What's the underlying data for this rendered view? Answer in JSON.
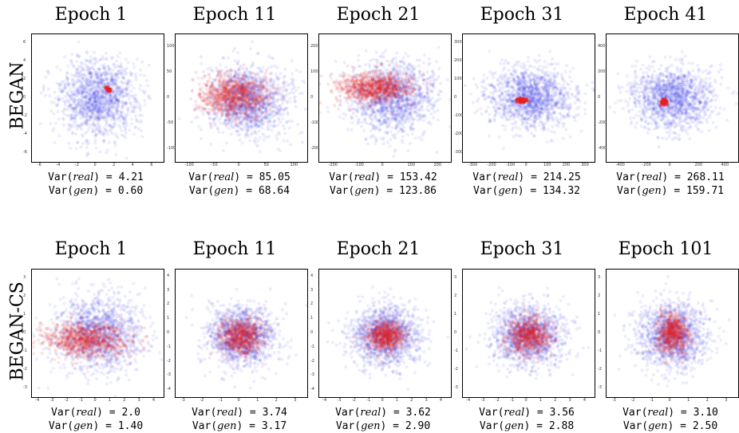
{
  "colors": {
    "real": "#1f1fe6",
    "gen": "#e61f1f"
  },
  "rows": [
    {
      "label": "BEGAN",
      "panels": [
        {
          "title": "Epoch 1",
          "var_real": "4.21",
          "var_gen": "0.60",
          "real": {
            "cx": 0.5,
            "cy": 0.5,
            "sx": 0.15,
            "sy": 0.15
          },
          "gen": {
            "cx": 0.58,
            "cy": 0.43,
            "sx": 0.008,
            "sy": 0.012,
            "n": 25
          },
          "xticks": [
            "-6",
            "-4",
            "-2",
            "0",
            "2",
            "4",
            "6"
          ],
          "yticks": [
            "6",
            "4",
            "2",
            "0",
            "-2",
            "-4",
            "-6"
          ]
        },
        {
          "title": "Epoch 11",
          "var_real": "85.05",
          "var_gen": "68.64",
          "real": {
            "cx": 0.55,
            "cy": 0.52,
            "sx": 0.15,
            "sy": 0.13
          },
          "gen": {
            "cx": 0.45,
            "cy": 0.48,
            "sx": 0.13,
            "sy": 0.08,
            "n": 900
          },
          "xticks": [
            "-100",
            "-50",
            "0",
            "50",
            "100"
          ],
          "yticks": [
            "100",
            "50",
            "0",
            "-50",
            "-100"
          ]
        },
        {
          "title": "Epoch 21",
          "var_real": "153.42",
          "var_gen": "123.86",
          "real": {
            "cx": 0.55,
            "cy": 0.5,
            "sx": 0.16,
            "sy": 0.14
          },
          "gen": {
            "cx": 0.42,
            "cy": 0.42,
            "sx": 0.14,
            "sy": 0.06,
            "n": 900
          },
          "xticks": [
            "-200",
            "-100",
            "0",
            "100",
            "200"
          ],
          "yticks": [
            "200",
            "100",
            "0",
            "-100",
            "-200"
          ]
        },
        {
          "title": "Epoch 31",
          "var_real": "214.25",
          "var_gen": "134.32",
          "real": {
            "cx": 0.52,
            "cy": 0.5,
            "sx": 0.16,
            "sy": 0.12
          },
          "gen": {
            "cx": 0.45,
            "cy": 0.52,
            "sx": 0.02,
            "sy": 0.01,
            "n": 60
          },
          "xticks": [
            "-300",
            "-200",
            "-100",
            "0",
            "100",
            "200",
            "300"
          ],
          "yticks": [
            "300",
            "200",
            "100",
            "0",
            "-100",
            "-200",
            "-300"
          ]
        },
        {
          "title": "Epoch 41",
          "var_real": "268.11",
          "var_gen": "159.71",
          "real": {
            "cx": 0.5,
            "cy": 0.5,
            "sx": 0.15,
            "sy": 0.12
          },
          "gen": {
            "cx": 0.44,
            "cy": 0.53,
            "sx": 0.012,
            "sy": 0.012,
            "n": 60
          },
          "xticks": [
            "-400",
            "-200",
            "0",
            "200",
            "400"
          ],
          "yticks": [
            "400",
            "200",
            "0",
            "-200",
            "-400"
          ]
        }
      ]
    },
    {
      "label": "BEGAN-CS",
      "panels": [
        {
          "title": "Epoch 1",
          "var_real": "2.0",
          "var_gen": "1.40",
          "real": {
            "cx": 0.5,
            "cy": 0.5,
            "sx": 0.17,
            "sy": 0.15
          },
          "gen": {
            "cx": 0.42,
            "cy": 0.55,
            "sx": 0.16,
            "sy": 0.07,
            "n": 900
          },
          "xticks": [
            "-4",
            "-3",
            "-2",
            "-1",
            "0",
            "1",
            "2",
            "3",
            "4"
          ],
          "yticks": [
            "3",
            "2",
            "1",
            "0",
            "-1",
            "-2",
            "-3"
          ]
        },
        {
          "title": "Epoch 11",
          "var_real": "3.74",
          "var_gen": "3.17",
          "real": {
            "cx": 0.5,
            "cy": 0.52,
            "sx": 0.13,
            "sy": 0.12
          },
          "gen": {
            "cx": 0.5,
            "cy": 0.52,
            "sx": 0.08,
            "sy": 0.07,
            "n": 700
          },
          "xticks": [
            "-3",
            "-2",
            "-1",
            "0",
            "1",
            "2",
            "3"
          ],
          "yticks": [
            "4",
            "3",
            "2",
            "1",
            "0",
            "-1",
            "-2",
            "-3",
            "-4"
          ]
        },
        {
          "title": "Epoch 21",
          "var_real": "3.62",
          "var_gen": "2.90",
          "real": {
            "cx": 0.5,
            "cy": 0.52,
            "sx": 0.13,
            "sy": 0.12
          },
          "gen": {
            "cx": 0.5,
            "cy": 0.52,
            "sx": 0.07,
            "sy": 0.06,
            "n": 700
          },
          "xticks": [
            "-4",
            "-3",
            "-2",
            "-1",
            "0",
            "1",
            "2",
            "3",
            "4"
          ],
          "yticks": [
            "4",
            "3",
            "2",
            "1",
            "0",
            "-1",
            "-2",
            "-3",
            "-4"
          ]
        },
        {
          "title": "Epoch 31",
          "var_real": "3.56",
          "var_gen": "2.88",
          "real": {
            "cx": 0.5,
            "cy": 0.52,
            "sx": 0.13,
            "sy": 0.12
          },
          "gen": {
            "cx": 0.5,
            "cy": 0.52,
            "sx": 0.08,
            "sy": 0.07,
            "n": 700
          },
          "xticks": [
            "-4",
            "-3",
            "-2",
            "-1",
            "0",
            "1",
            "2",
            "3",
            "4"
          ],
          "yticks": [
            "3",
            "2",
            "1",
            "0",
            "-1",
            "-2",
            "-3"
          ]
        },
        {
          "title": "Epoch 101",
          "var_real": "3.10",
          "var_gen": "2.50",
          "real": {
            "cx": 0.5,
            "cy": 0.52,
            "sx": 0.13,
            "sy": 0.13
          },
          "gen": {
            "cx": 0.5,
            "cy": 0.5,
            "sx": 0.06,
            "sy": 0.08,
            "n": 700
          },
          "xticks": [
            "-3",
            "-2",
            "-1",
            "0",
            "1",
            "2",
            "3"
          ],
          "yticks": [
            "3",
            "2",
            "1",
            "0",
            "-1",
            "-2",
            "-3"
          ]
        }
      ]
    }
  ],
  "chart_data": [
    {
      "type": "scatter",
      "title": "Epoch 1",
      "row": "BEGAN",
      "var_real": 4.21,
      "var_gen": 0.6
    },
    {
      "type": "scatter",
      "title": "Epoch 11",
      "row": "BEGAN",
      "var_real": 85.05,
      "var_gen": 68.64
    },
    {
      "type": "scatter",
      "title": "Epoch 21",
      "row": "BEGAN",
      "var_real": 153.42,
      "var_gen": 123.86
    },
    {
      "type": "scatter",
      "title": "Epoch 31",
      "row": "BEGAN",
      "var_real": 214.25,
      "var_gen": 134.32
    },
    {
      "type": "scatter",
      "title": "Epoch 41",
      "row": "BEGAN",
      "var_real": 268.11,
      "var_gen": 159.71
    },
    {
      "type": "scatter",
      "title": "Epoch 1",
      "row": "BEGAN-CS",
      "var_real": 2.0,
      "var_gen": 1.4
    },
    {
      "type": "scatter",
      "title": "Epoch 11",
      "row": "BEGAN-CS",
      "var_real": 3.74,
      "var_gen": 3.17
    },
    {
      "type": "scatter",
      "title": "Epoch 21",
      "row": "BEGAN-CS",
      "var_real": 3.62,
      "var_gen": 2.9
    },
    {
      "type": "scatter",
      "title": "Epoch 31",
      "row": "BEGAN-CS",
      "var_real": 3.56,
      "var_gen": 2.88
    },
    {
      "type": "scatter",
      "title": "Epoch 101",
      "row": "BEGAN-CS",
      "var_real": 3.1,
      "var_gen": 2.5
    }
  ]
}
